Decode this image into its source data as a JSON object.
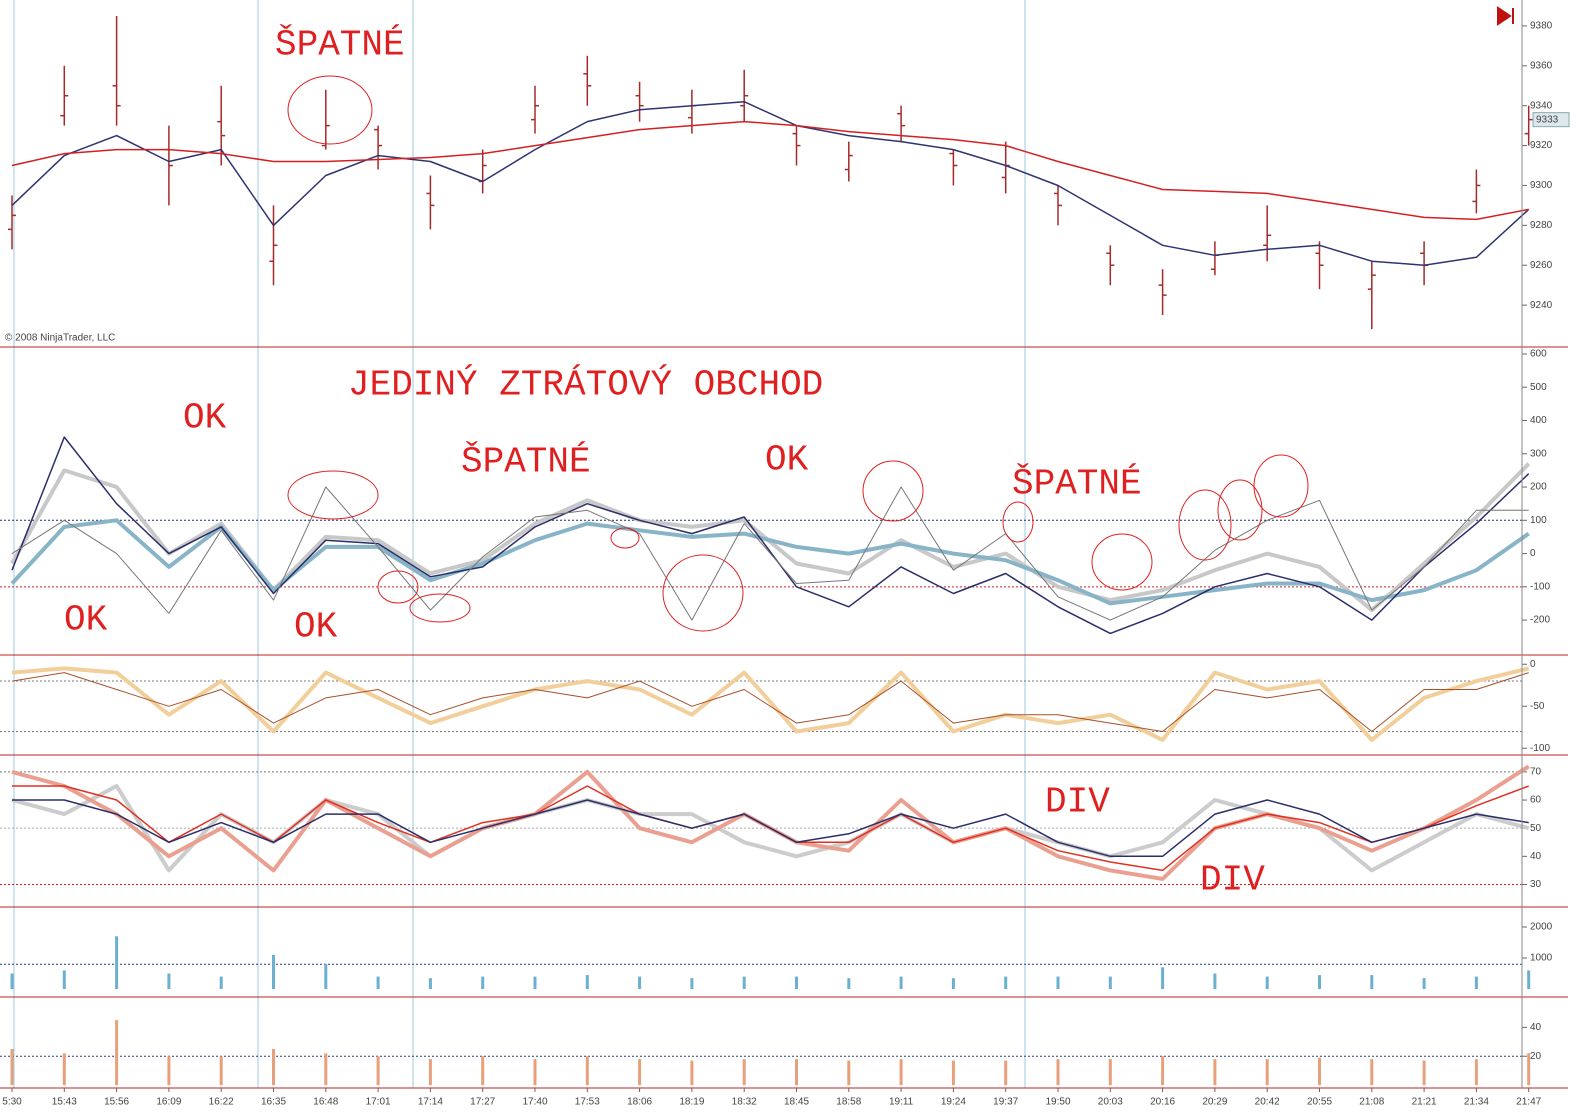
{
  "chart_data": [
    {
      "type": "ohlc",
      "copyright": "© 2008 NinjaTrader, LLC",
      "color": "#a52a2a",
      "last_price": 9333,
      "open": [
        9278,
        9335,
        9350,
        9318,
        9332,
        9262,
        9320,
        9328,
        9296,
        9302,
        9333,
        9356,
        9345,
        9334,
        9340,
        9326,
        9308,
        9336,
        9316,
        9304,
        9296,
        9266,
        9250,
        9258,
        9270,
        9266,
        9248,
        9266,
        9292,
        9326
      ],
      "high": [
        9295,
        9360,
        9385,
        9330,
        9350,
        9290,
        9348,
        9330,
        9305,
        9318,
        9350,
        9365,
        9352,
        9348,
        9358,
        9330,
        9322,
        9340,
        9318,
        9322,
        9300,
        9270,
        9258,
        9272,
        9290,
        9272,
        9262,
        9272,
        9308,
        9340
      ],
      "low": [
        9268,
        9330,
        9330,
        9290,
        9310,
        9250,
        9318,
        9308,
        9278,
        9296,
        9326,
        9340,
        9332,
        9326,
        9332,
        9310,
        9302,
        9322,
        9300,
        9296,
        9280,
        9250,
        9235,
        9255,
        9262,
        9248,
        9228,
        9250,
        9286,
        9320
      ],
      "close": [
        9285,
        9345,
        9340,
        9310,
        9325,
        9270,
        9330,
        9320,
        9290,
        9310,
        9340,
        9350,
        9340,
        9340,
        9345,
        9320,
        9315,
        9330,
        9310,
        9310,
        9290,
        9260,
        9245,
        9265,
        9275,
        9260,
        9255,
        9260,
        9300,
        9333
      ],
      "series": [
        {
          "color": "#2e3470",
          "width": 1.5,
          "values": [
            9290,
            9315,
            9325,
            9312,
            9318,
            9280,
            9305,
            9315,
            9312,
            9302,
            9318,
            9332,
            9338,
            9340,
            9342,
            9330,
            9325,
            9322,
            9318,
            9310,
            9300,
            9285,
            9270,
            9265,
            9268,
            9270,
            9262,
            9260,
            9264,
            9288
          ]
        },
        {
          "color": "#d42020",
          "width": 1.5,
          "values": [
            9310,
            9316,
            9318,
            9318,
            9316,
            9312,
            9312,
            9313,
            9314,
            9316,
            9320,
            9324,
            9328,
            9330,
            9332,
            9330,
            9327,
            9325,
            9323,
            9320,
            9312,
            9305,
            9298,
            9297,
            9296,
            9292,
            9288,
            9284,
            9283,
            9288
          ]
        }
      ],
      "ylim": [
        9219,
        9393
      ],
      "yticks": [
        9240,
        9260,
        9280,
        9300,
        9320,
        9340,
        9360,
        9380
      ],
      "annotations": [
        "ŠPATNÉ"
      ]
    },
    {
      "type": "line",
      "ylim": [
        -305,
        621
      ],
      "yticks": [
        -200,
        -100,
        0,
        100,
        200,
        300,
        400,
        500,
        600
      ],
      "ref_lines": [
        {
          "value": 100,
          "color": "#1f2a6e"
        },
        {
          "value": -100,
          "color": "#d42020"
        }
      ],
      "series": [
        {
          "color": "#c8c8c8",
          "width": 4,
          "values": [
            -30,
            250,
            200,
            0,
            90,
            -110,
            50,
            40,
            -60,
            -20,
            90,
            160,
            100,
            80,
            100,
            -30,
            -60,
            40,
            -40,
            0,
            -100,
            -140,
            -110,
            -50,
            0,
            -40,
            -170,
            -30,
            110,
            270
          ]
        },
        {
          "color": "#88b4c8",
          "width": 4,
          "values": [
            -90,
            80,
            100,
            -40,
            80,
            -110,
            20,
            20,
            -80,
            -30,
            40,
            90,
            70,
            50,
            60,
            20,
            0,
            30,
            0,
            -20,
            -80,
            -150,
            -130,
            -110,
            -90,
            -90,
            -140,
            -110,
            -50,
            60
          ]
        },
        {
          "color": "#2a2e6a",
          "width": 1.5,
          "values": [
            -50,
            350,
            150,
            0,
            80,
            -120,
            40,
            30,
            -70,
            -40,
            80,
            150,
            100,
            60,
            110,
            -100,
            -160,
            -40,
            -120,
            -60,
            -160,
            -240,
            -180,
            -100,
            -60,
            -100,
            -200,
            -40,
            90,
            240
          ]
        },
        {
          "color": "#777777",
          "width": 1,
          "values": [
            0,
            100,
            0,
            -180,
            70,
            -140,
            200,
            20,
            -170,
            -10,
            110,
            130,
            60,
            -200,
            90,
            -90,
            -80,
            200,
            -50,
            60,
            -130,
            -200,
            -130,
            10,
            100,
            160,
            -170,
            -40,
            130,
            130
          ]
        }
      ],
      "annotations": [
        "JEDINÝ ZTRÁTOVÝ OBCHOD",
        "OK",
        "OK",
        "OK",
        "ŠPATNÉ",
        "OK",
        "ŠPATNÉ"
      ]
    },
    {
      "type": "line",
      "ylim": [
        -108,
        11
      ],
      "yticks": [
        -100,
        -50,
        0
      ],
      "ref_lines": [
        {
          "value": -20,
          "color": "#777777"
        },
        {
          "value": -80,
          "color": "#777777"
        }
      ],
      "series": [
        {
          "color": "#f2cf9a",
          "width": 4,
          "values": [
            -10,
            -5,
            -10,
            -60,
            -20,
            -80,
            -10,
            -40,
            -70,
            -50,
            -30,
            -20,
            -30,
            -60,
            -10,
            -80,
            -70,
            -10,
            -80,
            -60,
            -70,
            -60,
            -90,
            -10,
            -30,
            -20,
            -90,
            -40,
            -20,
            -5
          ]
        },
        {
          "color": "#a8502a",
          "width": 1,
          "values": [
            -20,
            -10,
            -30,
            -50,
            -30,
            -70,
            -40,
            -30,
            -60,
            -40,
            -30,
            -40,
            -20,
            -50,
            -30,
            -70,
            -60,
            -20,
            -70,
            -60,
            -60,
            -70,
            -80,
            -30,
            -40,
            -30,
            -80,
            -30,
            -30,
            -10
          ]
        }
      ],
      "annotations": []
    },
    {
      "type": "line",
      "ylim": [
        22,
        76
      ],
      "yticks": [
        30,
        40,
        50,
        60,
        70
      ],
      "ref_lines": [
        {
          "value": 70,
          "color": "#777777"
        },
        {
          "value": 50,
          "color": "#aaaaaa"
        },
        {
          "value": 30,
          "color": "#d42020"
        }
      ],
      "series": [
        {
          "color": "#cccccc",
          "width": 4,
          "values": [
            60,
            55,
            65,
            35,
            55,
            45,
            60,
            55,
            40,
            50,
            55,
            60,
            55,
            55,
            45,
            40,
            45,
            55,
            45,
            50,
            45,
            40,
            45,
            60,
            55,
            50,
            35,
            45,
            55,
            50
          ]
        },
        {
          "color": "#eaa090",
          "width": 4,
          "values": [
            70,
            65,
            55,
            40,
            50,
            35,
            60,
            50,
            40,
            50,
            55,
            70,
            50,
            45,
            55,
            45,
            42,
            60,
            45,
            50,
            40,
            35,
            32,
            50,
            55,
            50,
            42,
            50,
            60,
            72
          ]
        },
        {
          "color": "#e03020",
          "width": 1.5,
          "values": [
            65,
            65,
            60,
            45,
            55,
            45,
            60,
            52,
            45,
            52,
            55,
            65,
            55,
            50,
            55,
            45,
            45,
            55,
            45,
            50,
            42,
            38,
            35,
            50,
            55,
            52,
            45,
            50,
            58,
            65
          ]
        },
        {
          "color": "#2a2e6a",
          "width": 1.5,
          "values": [
            60,
            60,
            55,
            45,
            52,
            45,
            55,
            55,
            45,
            50,
            55,
            60,
            55,
            50,
            55,
            45,
            48,
            55,
            50,
            55,
            45,
            40,
            40,
            55,
            60,
            55,
            45,
            50,
            55,
            52
          ]
        }
      ],
      "annotations": [
        "DIV",
        "DIV"
      ]
    },
    {
      "type": "bar",
      "color": "#6bb0d0",
      "ylim": [
        -258,
        2645
      ],
      "yticks": [
        1000,
        2000
      ],
      "ref_lines": [
        {
          "value": 800,
          "color": "#2a3a8a"
        }
      ],
      "values": [
        500,
        600,
        1700,
        500,
        400,
        1100,
        800,
        400,
        350,
        400,
        400,
        450,
        400,
        350,
        400,
        400,
        350,
        400,
        350,
        400,
        400,
        400,
        700,
        500,
        400,
        450,
        450,
        350,
        400,
        600
      ]
    },
    {
      "type": "bar",
      "color": "#e8a07a",
      "ylim": [
        -2,
        61
      ],
      "yticks": [
        20,
        40
      ],
      "ref_lines": [
        {
          "value": 20,
          "color": "#2a3a8a"
        }
      ],
      "values": [
        25,
        22,
        45,
        20,
        20,
        25,
        22,
        20,
        18,
        20,
        18,
        20,
        18,
        17,
        18,
        18,
        17,
        18,
        17,
        17,
        18,
        18,
        20,
        18,
        18,
        19,
        18,
        17,
        18,
        22
      ],
      "categories": [
        "5:30",
        "15:43",
        "15:56",
        "16:09",
        "16:22",
        "16:35",
        "16:48",
        "17:01",
        "17:14",
        "17:27",
        "17:40",
        "17:53",
        "18:06",
        "18:19",
        "18:32",
        "18:45",
        "18:58",
        "19:11",
        "19:24",
        "19:37",
        "19:50",
        "20:03",
        "20:16",
        "20:29",
        "20:42",
        "20:55",
        "21:08",
        "21:21",
        "21:34",
        "21:47"
      ]
    }
  ]
}
